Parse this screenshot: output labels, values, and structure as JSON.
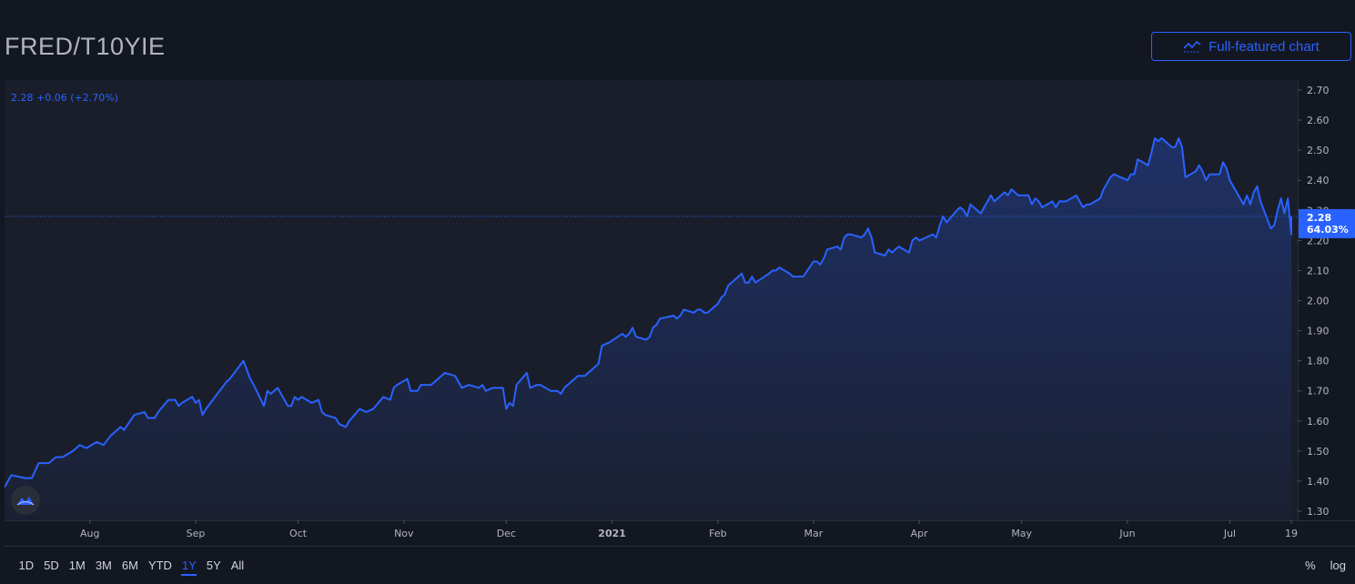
{
  "header": {
    "symbol": "FRED/T10YIE",
    "full_chart_label": "Full-featured chart",
    "full_chart_icon": "line-chart-icon"
  },
  "quote": {
    "text": "2.28 +0.06 (+2.70%)"
  },
  "price_label": {
    "value": "2.28",
    "change_pct": "64.03%"
  },
  "range_buttons": [
    "1D",
    "5D",
    "1M",
    "3M",
    "6M",
    "YTD",
    "1Y",
    "5Y",
    "All"
  ],
  "active_range": "1Y",
  "tools": {
    "percent": "%",
    "log": "log"
  },
  "colors": {
    "background": "#131722",
    "plot_bg": "#1a1e2b",
    "line": "#2962ff",
    "grid": "#2a2e39",
    "text": "#b2b5be",
    "accent": "#2962ff"
  },
  "chart_data": {
    "type": "area",
    "title": "",
    "xlabel": "",
    "ylabel": "",
    "ylim": [
      1.3,
      2.7
    ],
    "y_ticks": [
      "1.30",
      "1.40",
      "1.50",
      "1.60",
      "1.70",
      "1.80",
      "1.90",
      "2.00",
      "2.10",
      "2.20",
      "2.30",
      "2.40",
      "2.50",
      "2.60",
      "2.70"
    ],
    "x_ticks": [
      {
        "label": "Aug",
        "date": "2020-08-01",
        "bold": false
      },
      {
        "label": "Sep",
        "date": "2020-09-01",
        "bold": false
      },
      {
        "label": "Oct",
        "date": "2020-10-01",
        "bold": false
      },
      {
        "label": "Nov",
        "date": "2020-11-01",
        "bold": false
      },
      {
        "label": "Dec",
        "date": "2020-12-01",
        "bold": false
      },
      {
        "label": "2021",
        "date": "2021-01-01",
        "bold": true
      },
      {
        "label": "Feb",
        "date": "2021-02-01",
        "bold": false
      },
      {
        "label": "Mar",
        "date": "2021-03-01",
        "bold": false
      },
      {
        "label": "Apr",
        "date": "2021-04-01",
        "bold": false
      },
      {
        "label": "May",
        "date": "2021-05-01",
        "bold": false
      },
      {
        "label": "Jun",
        "date": "2021-06-01",
        "bold": false
      },
      {
        "label": "Jul",
        "date": "2021-07-01",
        "bold": false
      },
      {
        "label": "19",
        "date": "2021-07-19",
        "bold": false
      }
    ],
    "x_range": [
      "2020-07-07",
      "2021-07-19"
    ],
    "last_value": 2.28,
    "grid": false,
    "series": [
      {
        "values": [
          [
            "2020-07-07",
            1.38
          ],
          [
            "2020-07-09",
            1.42
          ],
          [
            "2020-07-13",
            1.41
          ],
          [
            "2020-07-15",
            1.41
          ],
          [
            "2020-07-17",
            1.46
          ],
          [
            "2020-07-20",
            1.46
          ],
          [
            "2020-07-22",
            1.48
          ],
          [
            "2020-07-24",
            1.48
          ],
          [
            "2020-07-27",
            1.5
          ],
          [
            "2020-07-29",
            1.52
          ],
          [
            "2020-07-31",
            1.51
          ],
          [
            "2020-08-03",
            1.53
          ],
          [
            "2020-08-05",
            1.52
          ],
          [
            "2020-08-07",
            1.55
          ],
          [
            "2020-08-10",
            1.58
          ],
          [
            "2020-08-11",
            1.57
          ],
          [
            "2020-08-14",
            1.62
          ],
          [
            "2020-08-17",
            1.63
          ],
          [
            "2020-08-18",
            1.61
          ],
          [
            "2020-08-20",
            1.61
          ],
          [
            "2020-08-21",
            1.63
          ],
          [
            "2020-08-24",
            1.67
          ],
          [
            "2020-08-26",
            1.67
          ],
          [
            "2020-08-27",
            1.65
          ],
          [
            "2020-08-28",
            1.66
          ],
          [
            "2020-08-31",
            1.68
          ],
          [
            "2020-09-01",
            1.66
          ],
          [
            "2020-09-02",
            1.67
          ],
          [
            "2020-09-03",
            1.62
          ],
          [
            "2020-09-04",
            1.64
          ],
          [
            "2020-09-08",
            1.7
          ],
          [
            "2020-09-10",
            1.73
          ],
          [
            "2020-09-11",
            1.74
          ],
          [
            "2020-09-15",
            1.8
          ],
          [
            "2020-09-17",
            1.74
          ],
          [
            "2020-09-18",
            1.72
          ],
          [
            "2020-09-21",
            1.65
          ],
          [
            "2020-09-22",
            1.7
          ],
          [
            "2020-09-23",
            1.69
          ],
          [
            "2020-09-25",
            1.71
          ],
          [
            "2020-09-28",
            1.65
          ],
          [
            "2020-09-29",
            1.65
          ],
          [
            "2020-09-30",
            1.68
          ],
          [
            "2020-10-01",
            1.67
          ],
          [
            "2020-10-02",
            1.68
          ],
          [
            "2020-10-05",
            1.66
          ],
          [
            "2020-10-07",
            1.67
          ],
          [
            "2020-10-08",
            1.63
          ],
          [
            "2020-10-09",
            1.62
          ],
          [
            "2020-10-12",
            1.61
          ],
          [
            "2020-10-13",
            1.59
          ],
          [
            "2020-10-15",
            1.58
          ],
          [
            "2020-10-16",
            1.6
          ],
          [
            "2020-10-19",
            1.64
          ],
          [
            "2020-10-21",
            1.63
          ],
          [
            "2020-10-23",
            1.64
          ],
          [
            "2020-10-26",
            1.68
          ],
          [
            "2020-10-28",
            1.67
          ],
          [
            "2020-10-29",
            1.71
          ],
          [
            "2020-10-30",
            1.72
          ],
          [
            "2020-11-02",
            1.74
          ],
          [
            "2020-11-03",
            1.7
          ],
          [
            "2020-11-05",
            1.7
          ],
          [
            "2020-11-06",
            1.72
          ],
          [
            "2020-11-09",
            1.72
          ],
          [
            "2020-11-11",
            1.74
          ],
          [
            "2020-11-13",
            1.76
          ],
          [
            "2020-11-16",
            1.75
          ],
          [
            "2020-11-17",
            1.73
          ],
          [
            "2020-11-18",
            1.71
          ],
          [
            "2020-11-20",
            1.72
          ],
          [
            "2020-11-23",
            1.71
          ],
          [
            "2020-11-24",
            1.72
          ],
          [
            "2020-11-25",
            1.7
          ],
          [
            "2020-11-27",
            1.71
          ],
          [
            "2020-11-30",
            1.71
          ],
          [
            "2020-12-01",
            1.64
          ],
          [
            "2020-12-02",
            1.66
          ],
          [
            "2020-12-03",
            1.65
          ],
          [
            "2020-12-04",
            1.72
          ],
          [
            "2020-12-07",
            1.76
          ],
          [
            "2020-12-08",
            1.71
          ],
          [
            "2020-12-10",
            1.72
          ],
          [
            "2020-12-11",
            1.72
          ],
          [
            "2020-12-14",
            1.7
          ],
          [
            "2020-12-16",
            1.7
          ],
          [
            "2020-12-17",
            1.69
          ],
          [
            "2020-12-18",
            1.71
          ],
          [
            "2020-12-21",
            1.74
          ],
          [
            "2020-12-22",
            1.75
          ],
          [
            "2020-12-24",
            1.75
          ],
          [
            "2020-12-28",
            1.79
          ],
          [
            "2020-12-29",
            1.85
          ],
          [
            "2020-12-31",
            1.86
          ],
          [
            "2021-01-04",
            1.89
          ],
          [
            "2021-01-05",
            1.88
          ],
          [
            "2021-01-06",
            1.89
          ],
          [
            "2021-01-07",
            1.91
          ],
          [
            "2021-01-08",
            1.88
          ],
          [
            "2021-01-11",
            1.87
          ],
          [
            "2021-01-12",
            1.88
          ],
          [
            "2021-01-13",
            1.91
          ],
          [
            "2021-01-14",
            1.92
          ],
          [
            "2021-01-15",
            1.94
          ],
          [
            "2021-01-19",
            1.95
          ],
          [
            "2021-01-20",
            1.94
          ],
          [
            "2021-01-21",
            1.95
          ],
          [
            "2021-01-22",
            1.97
          ],
          [
            "2021-01-25",
            1.96
          ],
          [
            "2021-01-26",
            1.97
          ],
          [
            "2021-01-27",
            1.97
          ],
          [
            "2021-01-28",
            1.96
          ],
          [
            "2021-01-29",
            1.96
          ],
          [
            "2021-02-01",
            1.99
          ],
          [
            "2021-02-02",
            2.01
          ],
          [
            "2021-02-03",
            2.02
          ],
          [
            "2021-02-04",
            2.05
          ],
          [
            "2021-02-05",
            2.06
          ],
          [
            "2021-02-08",
            2.09
          ],
          [
            "2021-02-09",
            2.06
          ],
          [
            "2021-02-10",
            2.06
          ],
          [
            "2021-02-11",
            2.08
          ],
          [
            "2021-02-12",
            2.06
          ],
          [
            "2021-02-16",
            2.09
          ],
          [
            "2021-02-17",
            2.1
          ],
          [
            "2021-02-18",
            2.1
          ],
          [
            "2021-02-19",
            2.11
          ],
          [
            "2021-02-22",
            2.09
          ],
          [
            "2021-02-23",
            2.08
          ],
          [
            "2021-02-24",
            2.08
          ],
          [
            "2021-02-25",
            2.08
          ],
          [
            "2021-02-26",
            2.08
          ],
          [
            "2021-03-01",
            2.13
          ],
          [
            "2021-03-02",
            2.13
          ],
          [
            "2021-03-03",
            2.12
          ],
          [
            "2021-03-04",
            2.14
          ],
          [
            "2021-03-05",
            2.17
          ],
          [
            "2021-03-08",
            2.18
          ],
          [
            "2021-03-09",
            2.17
          ],
          [
            "2021-03-10",
            2.21
          ],
          [
            "2021-03-11",
            2.22
          ],
          [
            "2021-03-12",
            2.22
          ],
          [
            "2021-03-15",
            2.21
          ],
          [
            "2021-03-16",
            2.22
          ],
          [
            "2021-03-17",
            2.24
          ],
          [
            "2021-03-18",
            2.21
          ],
          [
            "2021-03-19",
            2.16
          ],
          [
            "2021-03-22",
            2.15
          ],
          [
            "2021-03-23",
            2.17
          ],
          [
            "2021-03-24",
            2.16
          ],
          [
            "2021-03-25",
            2.17
          ],
          [
            "2021-03-26",
            2.18
          ],
          [
            "2021-03-29",
            2.16
          ],
          [
            "2021-03-30",
            2.2
          ],
          [
            "2021-03-31",
            2.21
          ],
          [
            "2021-04-01",
            2.2
          ],
          [
            "2021-04-05",
            2.22
          ],
          [
            "2021-04-06",
            2.21
          ],
          [
            "2021-04-07",
            2.25
          ],
          [
            "2021-04-08",
            2.28
          ],
          [
            "2021-04-09",
            2.26
          ],
          [
            "2021-04-12",
            2.3
          ],
          [
            "2021-04-13",
            2.31
          ],
          [
            "2021-04-14",
            2.3
          ],
          [
            "2021-04-15",
            2.28
          ],
          [
            "2021-04-16",
            2.32
          ],
          [
            "2021-04-19",
            2.29
          ],
          [
            "2021-04-20",
            2.31
          ],
          [
            "2021-04-21",
            2.33
          ],
          [
            "2021-04-22",
            2.35
          ],
          [
            "2021-04-23",
            2.33
          ],
          [
            "2021-04-26",
            2.36
          ],
          [
            "2021-04-27",
            2.35
          ],
          [
            "2021-04-28",
            2.37
          ],
          [
            "2021-04-29",
            2.36
          ],
          [
            "2021-04-30",
            2.35
          ],
          [
            "2021-05-03",
            2.35
          ],
          [
            "2021-05-04",
            2.32
          ],
          [
            "2021-05-05",
            2.34
          ],
          [
            "2021-05-06",
            2.33
          ],
          [
            "2021-05-07",
            2.31
          ],
          [
            "2021-05-10",
            2.33
          ],
          [
            "2021-05-11",
            2.31
          ],
          [
            "2021-05-12",
            2.33
          ],
          [
            "2021-05-13",
            2.33
          ],
          [
            "2021-05-14",
            2.33
          ],
          [
            "2021-05-17",
            2.35
          ],
          [
            "2021-05-18",
            2.33
          ],
          [
            "2021-05-19",
            2.31
          ],
          [
            "2021-05-20",
            2.32
          ],
          [
            "2021-05-21",
            2.32
          ],
          [
            "2021-05-24",
            2.34
          ],
          [
            "2021-05-25",
            2.37
          ],
          [
            "2021-05-26",
            2.39
          ],
          [
            "2021-05-27",
            2.41
          ],
          [
            "2021-05-28",
            2.42
          ],
          [
            "2021-06-01",
            2.4
          ],
          [
            "2021-06-02",
            2.42
          ],
          [
            "2021-06-03",
            2.42
          ],
          [
            "2021-06-04",
            2.47
          ],
          [
            "2021-06-07",
            2.45
          ],
          [
            "2021-06-08",
            2.49
          ],
          [
            "2021-06-09",
            2.54
          ],
          [
            "2021-06-10",
            2.53
          ],
          [
            "2021-06-11",
            2.54
          ],
          [
            "2021-06-14",
            2.51
          ],
          [
            "2021-06-15",
            2.51
          ],
          [
            "2021-06-16",
            2.54
          ],
          [
            "2021-06-17",
            2.51
          ],
          [
            "2021-06-18",
            2.41
          ],
          [
            "2021-06-21",
            2.43
          ],
          [
            "2021-06-22",
            2.45
          ],
          [
            "2021-06-23",
            2.43
          ],
          [
            "2021-06-24",
            2.4
          ],
          [
            "2021-06-25",
            2.42
          ],
          [
            "2021-06-28",
            2.42
          ],
          [
            "2021-06-29",
            2.46
          ],
          [
            "2021-06-30",
            2.44
          ],
          [
            "2021-07-01",
            2.4
          ],
          [
            "2021-07-02",
            2.38
          ],
          [
            "2021-07-05",
            2.32
          ],
          [
            "2021-07-06",
            2.35
          ],
          [
            "2021-07-07",
            2.32
          ],
          [
            "2021-07-08",
            2.36
          ],
          [
            "2021-07-09",
            2.38
          ],
          [
            "2021-07-10",
            2.33
          ],
          [
            "2021-07-12",
            2.27
          ],
          [
            "2021-07-13",
            2.24
          ],
          [
            "2021-07-14",
            2.25
          ],
          [
            "2021-07-15",
            2.3
          ],
          [
            "2021-07-16",
            2.34
          ],
          [
            "2021-07-17",
            2.29
          ],
          [
            "2021-07-18",
            2.34
          ],
          [
            "2021-07-19",
            2.22
          ],
          [
            "2021-07-19",
            2.28
          ]
        ]
      }
    ]
  }
}
